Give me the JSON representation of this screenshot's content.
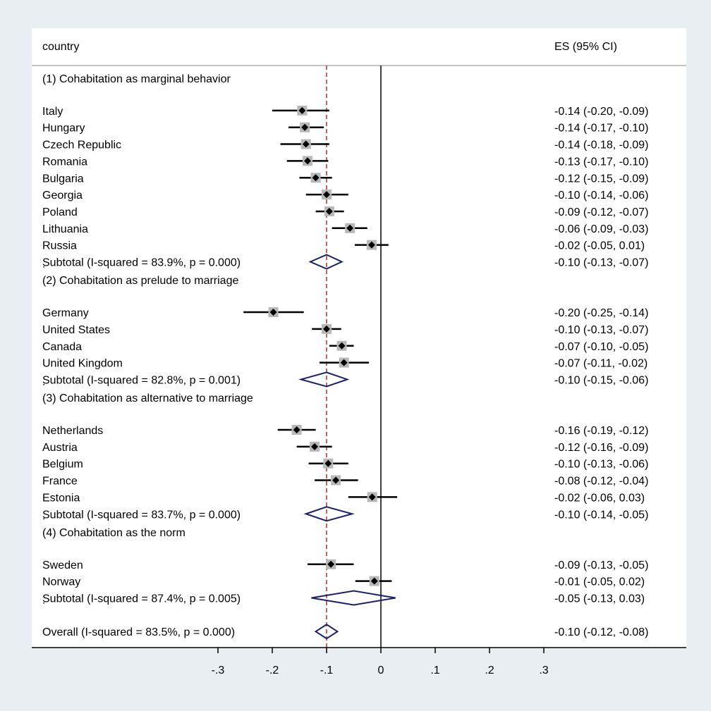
{
  "chart_data": {
    "type": "forest",
    "header": {
      "label_col": "country",
      "es_col": "ES (95% CI)"
    },
    "xlim": [
      -0.3,
      0.3
    ],
    "ticks": [
      {
        "value": -0.3,
        "label": "-.3"
      },
      {
        "value": -0.2,
        "label": "-.2"
      },
      {
        "value": -0.1,
        "label": "-.1"
      },
      {
        "value": 0,
        "label": "0"
      },
      {
        "value": 0.1,
        "label": ".1"
      },
      {
        "value": 0.2,
        "label": ".2"
      },
      {
        "value": 0.3,
        "label": ".3"
      }
    ],
    "overall_reference": -0.1,
    "null_line": 0,
    "colors": {
      "background": "#e8eef2",
      "panel": "#ffffff",
      "diamond": "#1a1f6e",
      "reference_line": "#a83232",
      "marker": "#000000",
      "weight_box": "#b8b8b8"
    },
    "rows": [
      {
        "kind": "group",
        "label": "(1) Cohabitation as marginal behavior"
      },
      {
        "kind": "study",
        "label": "Italy",
        "es": -0.145,
        "lo": -0.2,
        "hi": -0.095,
        "w": 1.0,
        "es_text": "-0.14 (-0.20, -0.09)"
      },
      {
        "kind": "study",
        "label": "Hungary",
        "es": -0.14,
        "lo": -0.17,
        "hi": -0.105,
        "w": 1.0,
        "es_text": "-0.14 (-0.17, -0.10)"
      },
      {
        "kind": "study",
        "label": "Czech Republic",
        "es": -0.138,
        "lo": -0.185,
        "hi": -0.095,
        "w": 1.0,
        "es_text": "-0.14 (-0.18, -0.09)"
      },
      {
        "kind": "study",
        "label": "Romania",
        "es": -0.135,
        "lo": -0.173,
        "hi": -0.097,
        "w": 1.0,
        "es_text": "-0.13 (-0.17, -0.10)"
      },
      {
        "kind": "study",
        "label": "Bulgaria",
        "es": -0.12,
        "lo": -0.15,
        "hi": -0.09,
        "w": 1.0,
        "es_text": "-0.12 (-0.15, -0.09)"
      },
      {
        "kind": "study",
        "label": "Georgia",
        "es": -0.1,
        "lo": -0.138,
        "hi": -0.06,
        "w": 1.0,
        "es_text": "-0.10 (-0.14, -0.06)"
      },
      {
        "kind": "study",
        "label": "Poland",
        "es": -0.095,
        "lo": -0.12,
        "hi": -0.068,
        "w": 1.0,
        "es_text": "-0.09 (-0.12, -0.07)"
      },
      {
        "kind": "study",
        "label": "Lithuania",
        "es": -0.057,
        "lo": -0.09,
        "hi": -0.025,
        "w": 1.0,
        "es_text": "-0.06 (-0.09, -0.03)"
      },
      {
        "kind": "study",
        "label": "Russia",
        "es": -0.017,
        "lo": -0.048,
        "hi": 0.014,
        "w": 1.0,
        "es_text": "-0.02 (-0.05, 0.01)"
      },
      {
        "kind": "subtotal",
        "label": "Subtotal  (I-squared = 83.9%, p = 0.000)",
        "es": -0.1,
        "lo": -0.13,
        "hi": -0.072,
        "es_text": "-0.10 (-0.13, -0.07)"
      },
      {
        "kind": "dot",
        "label": "."
      },
      {
        "kind": "group",
        "label": "(2) Cohabitation as prelude to marriage"
      },
      {
        "kind": "study",
        "label": "Germany",
        "es": -0.198,
        "lo": -0.253,
        "hi": -0.142,
        "w": 1.0,
        "es_text": "-0.20 (-0.25, -0.14)"
      },
      {
        "kind": "study",
        "label": "United States",
        "es": -0.1,
        "lo": -0.127,
        "hi": -0.073,
        "w": 1.0,
        "es_text": "-0.10 (-0.13, -0.07)"
      },
      {
        "kind": "study",
        "label": "Canada",
        "es": -0.072,
        "lo": -0.095,
        "hi": -0.05,
        "w": 1.0,
        "es_text": "-0.07 (-0.10, -0.05)"
      },
      {
        "kind": "study",
        "label": "United Kingdom",
        "es": -0.068,
        "lo": -0.113,
        "hi": -0.022,
        "w": 1.0,
        "es_text": "-0.07 (-0.11, -0.02)"
      },
      {
        "kind": "subtotal",
        "label": "Subtotal  (I-squared = 82.8%, p = 0.001)",
        "es": -0.1,
        "lo": -0.147,
        "hi": -0.062,
        "es_text": "-0.10 (-0.15, -0.06)"
      },
      {
        "kind": "dot",
        "label": "."
      },
      {
        "kind": "group",
        "label": "(3) Cohabitation as alternative to marriage"
      },
      {
        "kind": "study",
        "label": "Netherlands",
        "es": -0.155,
        "lo": -0.19,
        "hi": -0.12,
        "w": 1.0,
        "es_text": "-0.16 (-0.19, -0.12)"
      },
      {
        "kind": "study",
        "label": "Austria",
        "es": -0.122,
        "lo": -0.155,
        "hi": -0.09,
        "w": 1.0,
        "es_text": "-0.12 (-0.16, -0.09)"
      },
      {
        "kind": "study",
        "label": "Belgium",
        "es": -0.097,
        "lo": -0.133,
        "hi": -0.06,
        "w": 1.0,
        "es_text": "-0.10 (-0.13, -0.06)"
      },
      {
        "kind": "study",
        "label": "France",
        "es": -0.083,
        "lo": -0.122,
        "hi": -0.042,
        "w": 1.0,
        "es_text": "-0.08 (-0.12, -0.04)"
      },
      {
        "kind": "study",
        "label": "Estonia",
        "es": -0.016,
        "lo": -0.06,
        "hi": 0.03,
        "w": 1.0,
        "es_text": "-0.02 (-0.06, 0.03)"
      },
      {
        "kind": "subtotal",
        "label": "Subtotal  (I-squared = 83.7%, p = 0.000)",
        "es": -0.1,
        "lo": -0.138,
        "hi": -0.053,
        "es_text": "-0.10 (-0.14, -0.05)"
      },
      {
        "kind": "dot",
        "label": "."
      },
      {
        "kind": "group",
        "label": "(4) Cohabitation as the norm"
      },
      {
        "kind": "study",
        "label": "Sweden",
        "es": -0.092,
        "lo": -0.135,
        "hi": -0.05,
        "w": 1.0,
        "es_text": "-0.09 (-0.13, -0.05)"
      },
      {
        "kind": "study",
        "label": "Norway",
        "es": -0.012,
        "lo": -0.047,
        "hi": 0.02,
        "w": 1.0,
        "es_text": "-0.01 (-0.05, 0.02)"
      },
      {
        "kind": "subtotal",
        "label": "Subtotal  (I-squared = 87.4%, p = 0.005)",
        "es": -0.05,
        "lo": -0.128,
        "hi": 0.027,
        "es_text": "-0.05 (-0.13, 0.03)"
      },
      {
        "kind": "dot",
        "label": "."
      },
      {
        "kind": "subtotal",
        "label": "Overall  (I-squared = 83.5%, p = 0.000)",
        "es": -0.1,
        "lo": -0.12,
        "hi": -0.08,
        "es_text": "-0.10 (-0.12, -0.08)"
      }
    ]
  }
}
